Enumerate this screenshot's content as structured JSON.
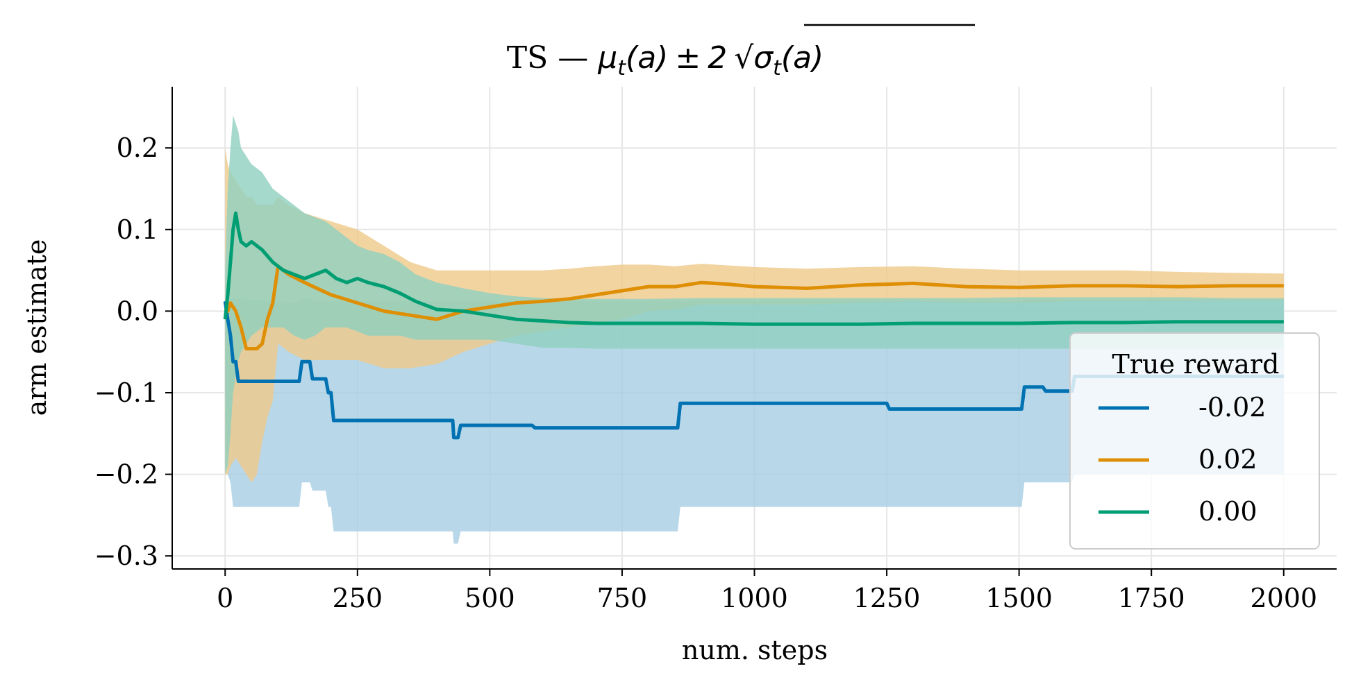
{
  "chart_data": {
    "type": "line",
    "title_prefix": "TS — ",
    "title_math": {
      "mu": "μ",
      "sub_t": "t",
      "arg": "(a)",
      "pm": "±",
      "two": "2",
      "sqrt": "√",
      "sigma": "σ",
      "sub_t2": "t",
      "arg2": "(a)"
    },
    "title": "TS — μt(a) ± 2 √σt(a)",
    "xlabel": "num. steps",
    "ylabel": "arm estimate",
    "xlim": [
      -100,
      2100
    ],
    "ylim": [
      -0.316,
      0.275
    ],
    "xticks": [
      0,
      250,
      500,
      750,
      1000,
      1250,
      1500,
      1750,
      2000
    ],
    "xtick_labels": [
      "0",
      "250",
      "500",
      "750",
      "1000",
      "1250",
      "1500",
      "1750",
      "2000"
    ],
    "yticks": [
      0.2,
      0.1,
      0.0,
      -0.1,
      -0.2,
      -0.3
    ],
    "ytick_labels": [
      "0.2",
      "0.1",
      "0.0",
      "−0.1",
      "−0.2",
      "−0.3"
    ],
    "grid": true,
    "legend": {
      "title": "True reward",
      "placement": "right"
    },
    "series": [
      {
        "name": "-0.02",
        "color": "#0072b2",
        "band_color": "#a6cde4",
        "x": [
          0,
          5,
          10,
          15,
          20,
          25,
          140,
          145,
          160,
          165,
          190,
          195,
          200,
          205,
          430,
          432,
          440,
          445,
          580,
          585,
          855,
          860,
          1250,
          1255,
          1505,
          1510,
          1545,
          1550,
          1600,
          1605,
          2000
        ],
        "values": [
          0.012,
          -0.01,
          -0.03,
          -0.062,
          -0.062,
          -0.086,
          -0.086,
          -0.062,
          -0.062,
          -0.083,
          -0.083,
          -0.1,
          -0.1,
          -0.134,
          -0.134,
          -0.155,
          -0.155,
          -0.14,
          -0.14,
          -0.143,
          -0.143,
          -0.113,
          -0.113,
          -0.12,
          -0.12,
          -0.093,
          -0.093,
          -0.098,
          -0.098,
          -0.08,
          -0.08
        ],
        "upper": [
          0.02,
          0.02,
          0.015,
          0.015,
          0.015,
          0.015,
          0.01,
          0.015,
          0.015,
          0.012,
          0.012,
          0.012,
          0.012,
          0.012,
          0.012,
          0.012,
          0.012,
          0.012,
          0.012,
          0.012,
          0.012,
          0.012,
          0.012,
          0.012,
          0.012,
          0.014,
          0.014,
          0.014,
          0.014,
          0.014,
          0.014
        ],
        "lower": [
          -0.1,
          -0.2,
          -0.21,
          -0.24,
          -0.24,
          -0.24,
          -0.24,
          -0.21,
          -0.21,
          -0.22,
          -0.22,
          -0.24,
          -0.24,
          -0.27,
          -0.27,
          -0.285,
          -0.285,
          -0.27,
          -0.27,
          -0.27,
          -0.27,
          -0.24,
          -0.24,
          -0.24,
          -0.24,
          -0.21,
          -0.21,
          -0.21,
          -0.21,
          -0.2,
          -0.2
        ]
      },
      {
        "name": "0.02",
        "color": "#de8f05",
        "band_color": "#efc98a",
        "x": [
          0,
          5,
          10,
          20,
          30,
          40,
          50,
          60,
          70,
          80,
          90,
          100,
          120,
          150,
          200,
          250,
          300,
          350,
          400,
          450,
          500,
          550,
          600,
          650,
          700,
          750,
          800,
          850,
          900,
          950,
          1000,
          1100,
          1200,
          1300,
          1400,
          1500,
          1600,
          1700,
          1800,
          1900,
          2000
        ],
        "values": [
          0.0,
          0.0,
          0.01,
          0.0,
          -0.02,
          -0.046,
          -0.046,
          -0.046,
          -0.04,
          -0.01,
          0.01,
          0.055,
          0.045,
          0.035,
          0.02,
          0.01,
          0.0,
          -0.005,
          -0.01,
          0.0,
          0.005,
          0.01,
          0.012,
          0.015,
          0.02,
          0.025,
          0.03,
          0.03,
          0.035,
          0.033,
          0.03,
          0.028,
          0.032,
          0.034,
          0.03,
          0.029,
          0.031,
          0.031,
          0.03,
          0.031,
          0.031
        ],
        "upper": [
          0.2,
          0.18,
          0.17,
          0.16,
          0.15,
          0.14,
          0.14,
          0.13,
          0.13,
          0.13,
          0.13,
          0.14,
          0.13,
          0.12,
          0.11,
          0.1,
          0.08,
          0.06,
          0.05,
          0.05,
          0.05,
          0.05,
          0.05,
          0.052,
          0.055,
          0.057,
          0.057,
          0.055,
          0.058,
          0.056,
          0.054,
          0.052,
          0.054,
          0.055,
          0.052,
          0.05,
          0.05,
          0.05,
          0.048,
          0.047,
          0.046
        ],
        "lower": [
          -0.2,
          -0.2,
          -0.19,
          -0.18,
          -0.19,
          -0.2,
          -0.21,
          -0.2,
          -0.16,
          -0.13,
          -0.11,
          -0.04,
          -0.05,
          -0.06,
          -0.06,
          -0.06,
          -0.07,
          -0.07,
          -0.065,
          -0.05,
          -0.04,
          -0.03,
          -0.025,
          -0.02,
          -0.015,
          -0.01,
          0.0,
          0.002,
          0.008,
          0.008,
          0.008,
          0.008,
          0.01,
          0.012,
          0.01,
          0.01,
          0.012,
          0.012,
          0.012,
          0.013,
          0.013
        ]
      },
      {
        "name": "0.00",
        "color": "#029e73",
        "band_color": "#8fcfbf",
        "x": [
          0,
          5,
          10,
          15,
          20,
          25,
          30,
          40,
          50,
          70,
          90,
          110,
          130,
          150,
          170,
          190,
          210,
          230,
          250,
          270,
          300,
          330,
          360,
          400,
          450,
          500,
          550,
          600,
          650,
          700,
          800,
          900,
          1000,
          1100,
          1200,
          1300,
          1400,
          1500,
          1600,
          1700,
          1800,
          1900,
          2000
        ],
        "values": [
          -0.01,
          0.02,
          0.06,
          0.1,
          0.12,
          0.1,
          0.085,
          0.08,
          0.085,
          0.075,
          0.06,
          0.05,
          0.045,
          0.04,
          0.045,
          0.05,
          0.04,
          0.035,
          0.04,
          0.035,
          0.03,
          0.022,
          0.012,
          0.002,
          0.0,
          -0.005,
          -0.01,
          -0.012,
          -0.014,
          -0.015,
          -0.015,
          -0.015,
          -0.016,
          -0.016,
          -0.016,
          -0.015,
          -0.015,
          -0.015,
          -0.014,
          -0.014,
          -0.013,
          -0.013,
          -0.013
        ],
        "upper": [
          0.05,
          0.15,
          0.2,
          0.24,
          0.23,
          0.22,
          0.2,
          0.19,
          0.18,
          0.17,
          0.15,
          0.14,
          0.13,
          0.12,
          0.115,
          0.11,
          0.1,
          0.09,
          0.08,
          0.075,
          0.07,
          0.06,
          0.045,
          0.035,
          0.028,
          0.022,
          0.018,
          0.016,
          0.015,
          0.015,
          0.015,
          0.016,
          0.016,
          0.016,
          0.016,
          0.016,
          0.016,
          0.017,
          0.017,
          0.017,
          0.017,
          0.016,
          0.016
        ],
        "lower": [
          -0.2,
          -0.19,
          -0.15,
          -0.1,
          -0.08,
          -0.06,
          -0.05,
          -0.04,
          -0.03,
          -0.02,
          -0.02,
          -0.02,
          -0.03,
          -0.035,
          -0.03,
          -0.02,
          -0.02,
          -0.02,
          -0.025,
          -0.03,
          -0.03,
          -0.03,
          -0.035,
          -0.035,
          -0.035,
          -0.035,
          -0.04,
          -0.045,
          -0.045,
          -0.046,
          -0.046,
          -0.046,
          -0.046,
          -0.046,
          -0.046,
          -0.046,
          -0.046,
          -0.046,
          -0.046,
          -0.046,
          -0.046,
          -0.046,
          -0.046
        ]
      }
    ]
  }
}
